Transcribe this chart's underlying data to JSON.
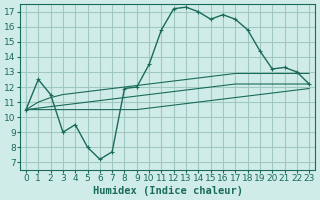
{
  "xlabel": "Humidex (Indice chaleur)",
  "ylabel": "",
  "xlim": [
    -0.5,
    23.5
  ],
  "ylim": [
    6.5,
    17.5
  ],
  "xticks": [
    0,
    1,
    2,
    3,
    4,
    5,
    6,
    7,
    8,
    9,
    10,
    11,
    12,
    13,
    14,
    15,
    16,
    17,
    18,
    19,
    20,
    21,
    22,
    23
  ],
  "yticks": [
    7,
    8,
    9,
    10,
    11,
    12,
    13,
    14,
    15,
    16,
    17
  ],
  "bg_color": "#d0ece8",
  "grid_color": "#a0c8c0",
  "line_color": "#1a6b5a",
  "curves": [
    [
      10.5,
      12.5,
      11.5,
      9.0,
      9.5,
      8.0,
      7.2,
      7.7,
      11.9,
      12.0,
      13.5,
      15.8,
      17.2,
      17.3,
      17.0,
      16.5,
      16.8,
      16.5,
      15.8,
      14.4,
      13.2,
      13.3,
      13.0,
      12.2
    ],
    [
      10.5,
      11.0,
      11.3,
      11.5,
      11.6,
      11.7,
      11.8,
      11.9,
      12.0,
      12.1,
      12.2,
      12.3,
      12.4,
      12.5,
      12.6,
      12.7,
      12.8,
      12.9,
      12.9,
      12.9,
      12.9,
      12.9,
      12.9,
      12.9
    ],
    [
      10.5,
      10.6,
      10.7,
      10.8,
      10.9,
      11.0,
      11.1,
      11.2,
      11.3,
      11.4,
      11.5,
      11.6,
      11.7,
      11.8,
      11.9,
      12.0,
      12.1,
      12.2,
      12.2,
      12.2,
      12.2,
      12.2,
      12.2,
      12.2
    ],
    [
      10.5,
      10.5,
      10.5,
      10.5,
      10.5,
      10.5,
      10.5,
      10.5,
      10.5,
      10.5,
      10.6,
      10.7,
      10.8,
      10.9,
      11.0,
      11.1,
      11.2,
      11.3,
      11.4,
      11.5,
      11.6,
      11.7,
      11.8,
      11.9
    ]
  ],
  "fontsize": 7.5,
  "tick_fontsize": 6.5
}
